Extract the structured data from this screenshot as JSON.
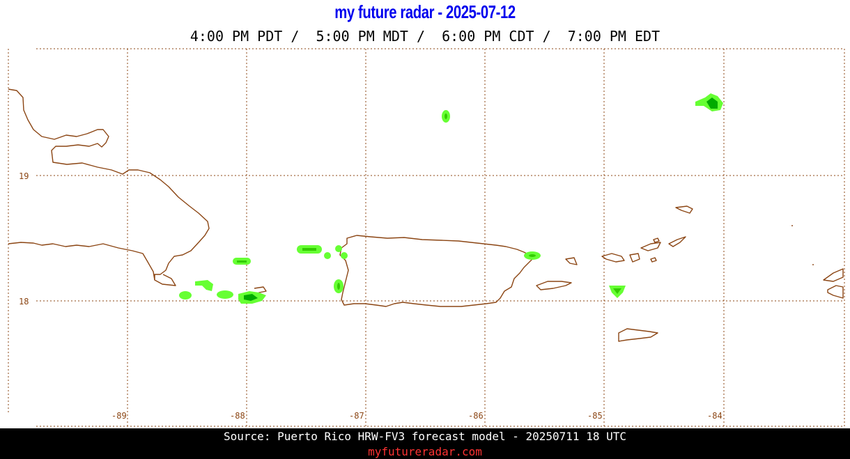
{
  "header": {
    "title": "my future radar - 2025-07-12",
    "times": "4:00 PM PDT /  5:00 PM MDT /  6:00 PM CDT /  7:00 PM EDT"
  },
  "map": {
    "lat_labels": [
      "19",
      "18"
    ],
    "lon_labels": [
      "-89",
      "-88",
      "-87",
      "-86",
      "-85",
      "-84"
    ],
    "colors": {
      "coast": "#8b4513",
      "grid": "#8b4513",
      "label": "#8b4513",
      "radar_light": "#66ff33",
      "radar_mid": "#33cc00",
      "radar_dark": "#00aa00"
    },
    "regions": [
      "Hispaniola",
      "Puerto Rico",
      "Vieques",
      "Culebra",
      "Virgin Islands",
      "St. Croix"
    ]
  },
  "footer": {
    "source": "Source: Puerto Rico HRW-FV3 forecast model - 20250711 18 UTC",
    "site": "myfutureradar.com",
    "site_color": "#ff3333"
  }
}
